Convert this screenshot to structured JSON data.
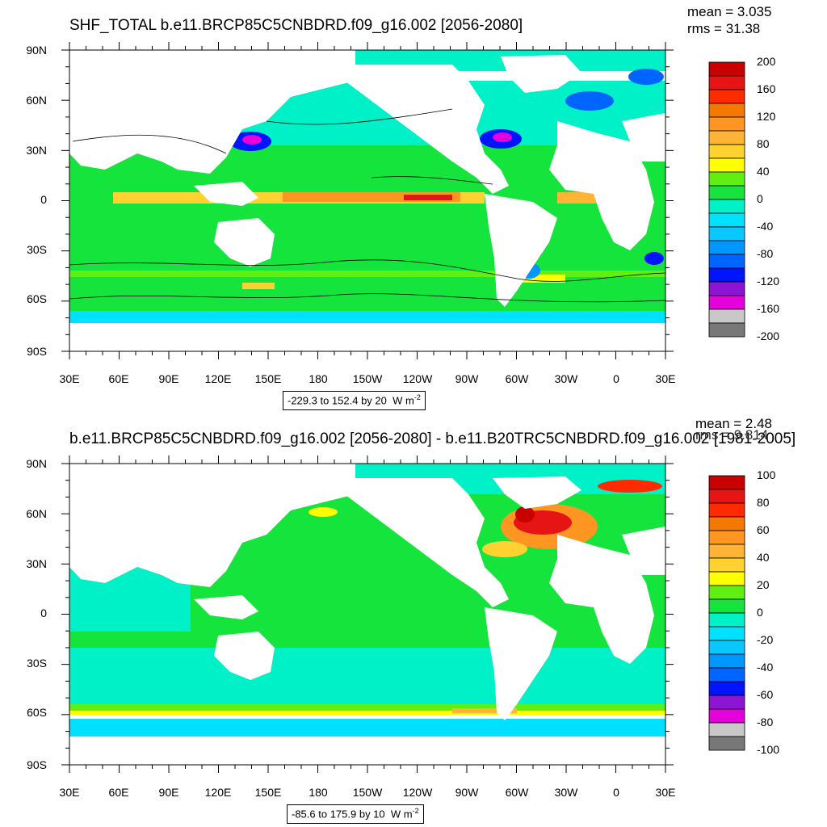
{
  "map_data": {
    "type": "map",
    "projection": "cylindrical-equidistant",
    "lon_labels": [
      "30E",
      "60E",
      "90E",
      "120E",
      "150E",
      "180",
      "150W",
      "120W",
      "90W",
      "60W",
      "30W",
      "0",
      "30E"
    ],
    "lat_labels": [
      "90N",
      "60N",
      "30N",
      "0",
      "30S",
      "60S",
      "90S"
    ],
    "panels": [
      {
        "title": "SHF_TOTAL b.e11.BRCP85C5CNBDRD.f09_g16.002 [2056-2080]",
        "mean_text": "mean = 3.035",
        "rms_text": "rms = 31.38",
        "range_text": "-229.3 to 152.4 by 20",
        "units": "W m",
        "units_exp": "-2",
        "colorbar_labels": [
          "200",
          "160",
          "120",
          "80",
          "40",
          "0",
          "-40",
          "-80",
          "-120",
          "-160",
          "-200"
        ],
        "colorbar_colors": [
          "#c80000",
          "#e61414",
          "#ff2b00",
          "#f57800",
          "#ff9622",
          "#ffb436",
          "#ffd232",
          "#ffff00",
          "#5fef12",
          "#14e43c",
          "#00f0c8",
          "#00e1ff",
          "#0ac8ff",
          "#0096ff",
          "#0064ff",
          "#0014ff",
          "#8c14d2",
          "#e600dc",
          "#c8c8c8",
          "#787878"
        ]
      },
      {
        "title": "b.e11.BRCP85C5CNBDRD.f09_g16.002 [2056-2080] - b.e11.B20TRC5CNBDRD.f09_g16.002 [1981-2005]",
        "mean_text": "mean = 2.48",
        "rms_text": "rms = 9.814",
        "range_text": "-85.6 to 175.9 by 10",
        "units": "W m",
        "units_exp": "-2",
        "colorbar_labels": [
          "100",
          "80",
          "60",
          "40",
          "20",
          "0",
          "-20",
          "-40",
          "-60",
          "-80",
          "-100"
        ],
        "colorbar_colors": [
          "#c80000",
          "#e61414",
          "#ff2b00",
          "#f57800",
          "#ff9622",
          "#ffb436",
          "#ffd232",
          "#ffff00",
          "#5fef12",
          "#14e43c",
          "#00f0c8",
          "#00e1ff",
          "#0ac8ff",
          "#0096ff",
          "#0064ff",
          "#0014ff",
          "#8c14d2",
          "#e600dc",
          "#c8c8c8",
          "#787878"
        ]
      }
    ]
  }
}
